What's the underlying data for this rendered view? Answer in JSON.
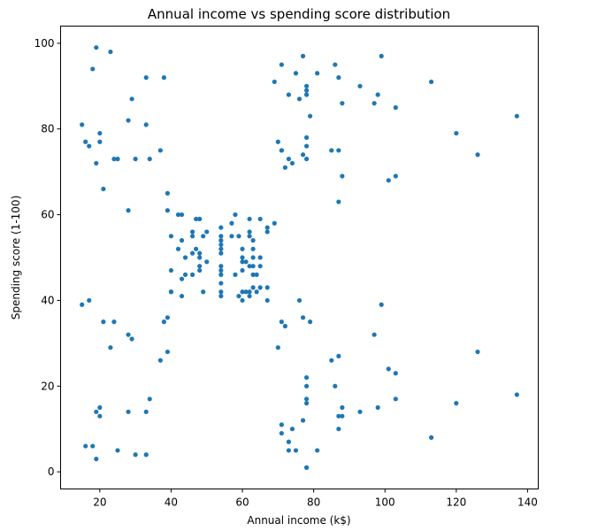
{
  "chart_data": {
    "type": "scatter",
    "title": "Annual income vs spending score distribution",
    "xlabel": "Annual income (k$)",
    "ylabel": "Spending score (1-100)",
    "xlim": [
      9,
      143
    ],
    "ylim": [
      -4,
      104
    ],
    "xticks": [
      20,
      40,
      60,
      80,
      100,
      120,
      140
    ],
    "yticks": [
      0,
      20,
      40,
      60,
      80,
      100
    ],
    "grid": false,
    "marker_color": "#1f77b4",
    "points": [
      [
        15,
        39
      ],
      [
        15,
        81
      ],
      [
        16,
        6
      ],
      [
        16,
        77
      ],
      [
        17,
        40
      ],
      [
        17,
        76
      ],
      [
        18,
        6
      ],
      [
        18,
        94
      ],
      [
        19,
        3
      ],
      [
        19,
        72
      ],
      [
        19,
        14
      ],
      [
        19,
        99
      ],
      [
        20,
        15
      ],
      [
        20,
        77
      ],
      [
        20,
        13
      ],
      [
        20,
        79
      ],
      [
        21,
        35
      ],
      [
        21,
        66
      ],
      [
        23,
        29
      ],
      [
        23,
        98
      ],
      [
        24,
        35
      ],
      [
        24,
        73
      ],
      [
        25,
        5
      ],
      [
        25,
        73
      ],
      [
        28,
        14
      ],
      [
        28,
        82
      ],
      [
        28,
        32
      ],
      [
        28,
        61
      ],
      [
        29,
        31
      ],
      [
        29,
        87
      ],
      [
        30,
        4
      ],
      [
        30,
        73
      ],
      [
        33,
        4
      ],
      [
        33,
        92
      ],
      [
        33,
        14
      ],
      [
        33,
        81
      ],
      [
        34,
        17
      ],
      [
        34,
        73
      ],
      [
        37,
        26
      ],
      [
        37,
        75
      ],
      [
        38,
        35
      ],
      [
        38,
        92
      ],
      [
        39,
        36
      ],
      [
        39,
        61
      ],
      [
        39,
        28
      ],
      [
        39,
        65
      ],
      [
        40,
        55
      ],
      [
        40,
        47
      ],
      [
        40,
        42
      ],
      [
        40,
        42
      ],
      [
        42,
        52
      ],
      [
        42,
        60
      ],
      [
        43,
        54
      ],
      [
        43,
        60
      ],
      [
        43,
        45
      ],
      [
        43,
        41
      ],
      [
        44,
        50
      ],
      [
        44,
        46
      ],
      [
        46,
        51
      ],
      [
        46,
        46
      ],
      [
        46,
        56
      ],
      [
        46,
        55
      ],
      [
        47,
        52
      ],
      [
        47,
        59
      ],
      [
        48,
        51
      ],
      [
        48,
        59
      ],
      [
        48,
        50
      ],
      [
        48,
        48
      ],
      [
        48,
        59
      ],
      [
        48,
        47
      ],
      [
        49,
        55
      ],
      [
        49,
        42
      ],
      [
        50,
        49
      ],
      [
        50,
        56
      ],
      [
        54,
        47
      ],
      [
        54,
        54
      ],
      [
        54,
        53
      ],
      [
        54,
        48
      ],
      [
        54,
        52
      ],
      [
        54,
        42
      ],
      [
        54,
        51
      ],
      [
        54,
        55
      ],
      [
        54,
        41
      ],
      [
        54,
        44
      ],
      [
        54,
        57
      ],
      [
        54,
        46
      ],
      [
        57,
        58
      ],
      [
        57,
        55
      ],
      [
        58,
        60
      ],
      [
        58,
        46
      ],
      [
        59,
        55
      ],
      [
        59,
        41
      ],
      [
        60,
        49
      ],
      [
        60,
        40
      ],
      [
        60,
        42
      ],
      [
        60,
        52
      ],
      [
        60,
        47
      ],
      [
        60,
        50
      ],
      [
        61,
        42
      ],
      [
        61,
        49
      ],
      [
        62,
        41
      ],
      [
        62,
        48
      ],
      [
        62,
        59
      ],
      [
        62,
        55
      ],
      [
        62,
        56
      ],
      [
        62,
        42
      ],
      [
        63,
        50
      ],
      [
        63,
        46
      ],
      [
        63,
        43
      ],
      [
        63,
        48
      ],
      [
        63,
        52
      ],
      [
        63,
        54
      ],
      [
        64,
        42
      ],
      [
        64,
        46
      ],
      [
        65,
        48
      ],
      [
        65,
        50
      ],
      [
        65,
        43
      ],
      [
        65,
        59
      ],
      [
        67,
        43
      ],
      [
        67,
        57
      ],
      [
        67,
        56
      ],
      [
        67,
        40
      ],
      [
        69,
        58
      ],
      [
        69,
        91
      ],
      [
        70,
        29
      ],
      [
        70,
        77
      ],
      [
        71,
        35
      ],
      [
        71,
        95
      ],
      [
        71,
        11
      ],
      [
        71,
        75
      ],
      [
        71,
        9
      ],
      [
        71,
        75
      ],
      [
        72,
        34
      ],
      [
        72,
        71
      ],
      [
        73,
        5
      ],
      [
        73,
        88
      ],
      [
        73,
        7
      ],
      [
        73,
        73
      ],
      [
        74,
        10
      ],
      [
        74,
        72
      ],
      [
        75,
        5
      ],
      [
        75,
        93
      ],
      [
        76,
        40
      ],
      [
        76,
        87
      ],
      [
        77,
        12
      ],
      [
        77,
        97
      ],
      [
        77,
        36
      ],
      [
        77,
        74
      ],
      [
        78,
        22
      ],
      [
        78,
        90
      ],
      [
        78,
        17
      ],
      [
        78,
        88
      ],
      [
        78,
        20
      ],
      [
        78,
        76
      ],
      [
        78,
        16
      ],
      [
        78,
        89
      ],
      [
        78,
        1
      ],
      [
        78,
        78
      ],
      [
        78,
        1
      ],
      [
        78,
        73
      ],
      [
        79,
        35
      ],
      [
        79,
        83
      ],
      [
        81,
        5
      ],
      [
        81,
        93
      ],
      [
        85,
        26
      ],
      [
        85,
        75
      ],
      [
        86,
        20
      ],
      [
        86,
        95
      ],
      [
        87,
        27
      ],
      [
        87,
        63
      ],
      [
        87,
        13
      ],
      [
        87,
        75
      ],
      [
        87,
        10
      ],
      [
        87,
        92
      ],
      [
        88,
        13
      ],
      [
        88,
        86
      ],
      [
        88,
        15
      ],
      [
        88,
        69
      ],
      [
        93,
        14
      ],
      [
        93,
        90
      ],
      [
        97,
        32
      ],
      [
        97,
        86
      ],
      [
        98,
        15
      ],
      [
        98,
        88
      ],
      [
        99,
        39
      ],
      [
        99,
        97
      ],
      [
        101,
        24
      ],
      [
        101,
        68
      ],
      [
        103,
        17
      ],
      [
        103,
        85
      ],
      [
        103,
        23
      ],
      [
        103,
        69
      ],
      [
        113,
        8
      ],
      [
        113,
        91
      ],
      [
        120,
        16
      ],
      [
        120,
        79
      ],
      [
        126,
        28
      ],
      [
        126,
        74
      ],
      [
        137,
        18
      ],
      [
        137,
        83
      ]
    ]
  }
}
